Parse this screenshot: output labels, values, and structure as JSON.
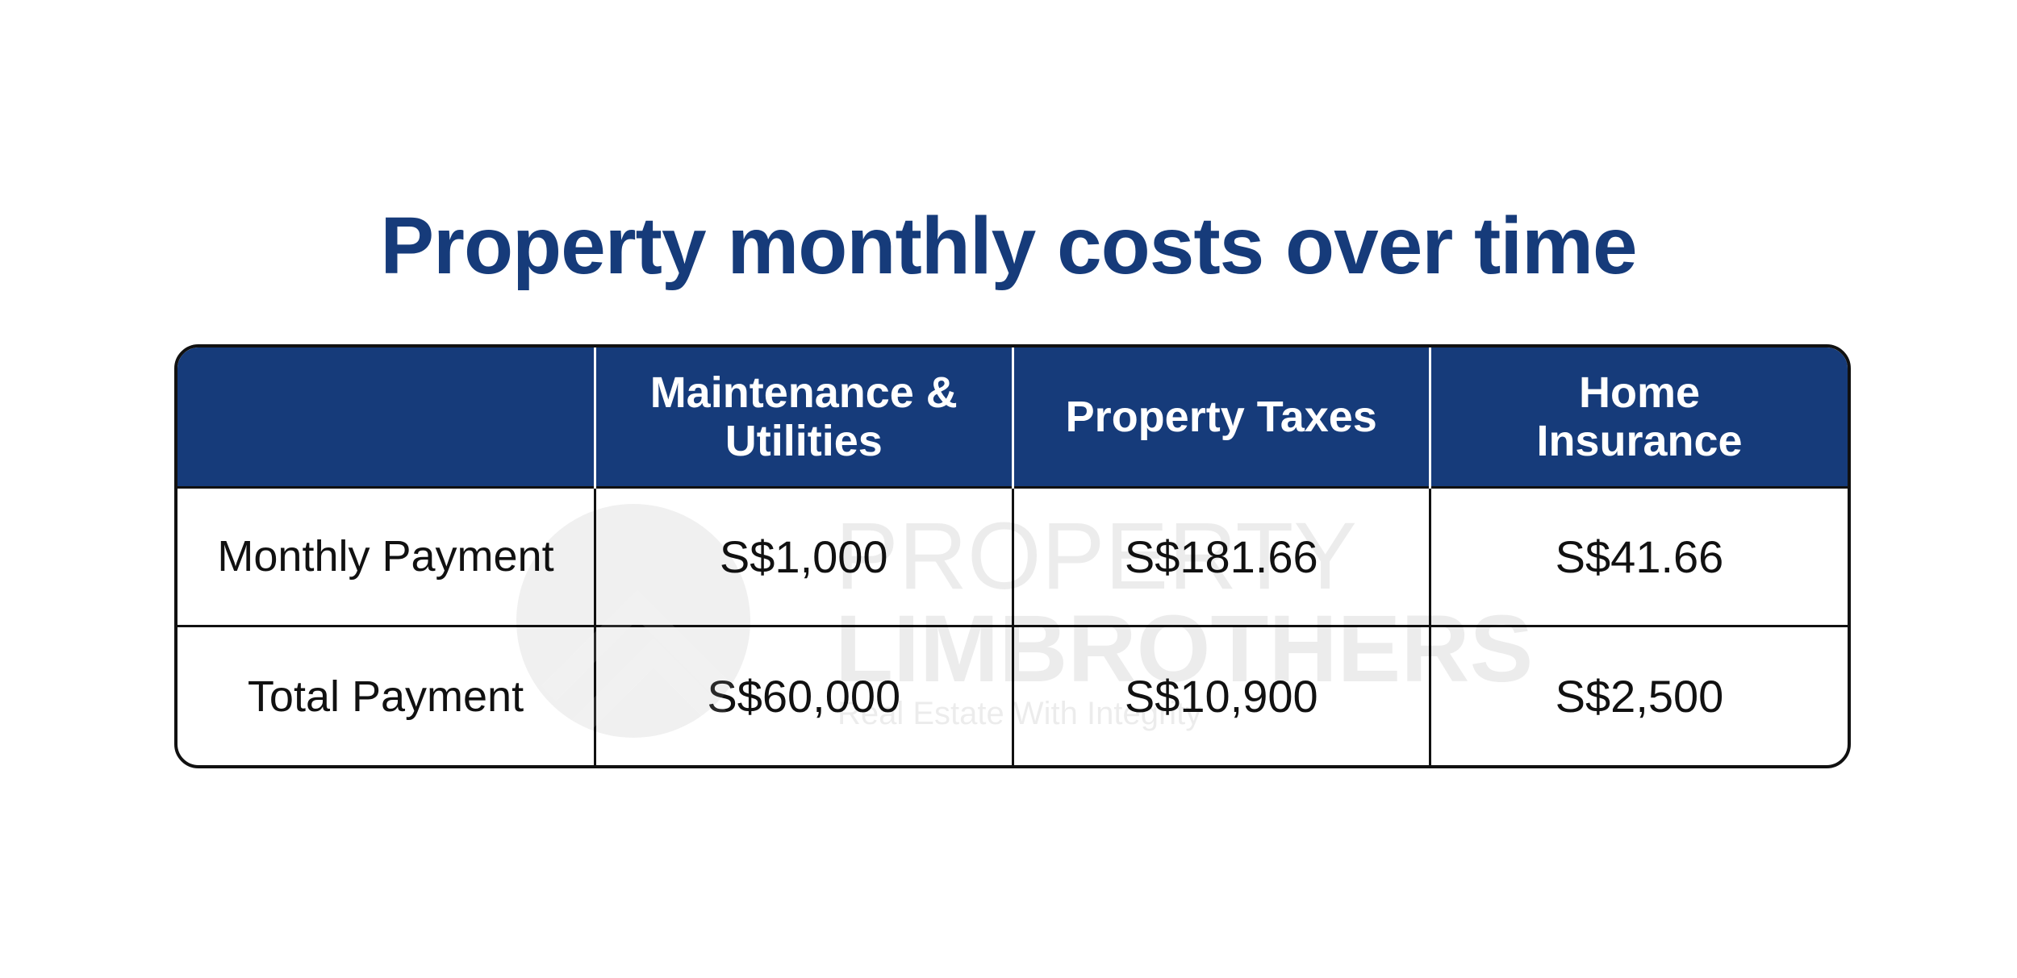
{
  "chart_data": {
    "type": "table",
    "title": "Property monthly costs over time",
    "columns": [
      "",
      "Maintenance & Utilities",
      "Property Taxes",
      "Home Insurance"
    ],
    "rows": [
      {
        "label": "Monthly Payment",
        "values": [
          "S$1,000",
          "S$181.66",
          "S$41.66"
        ]
      },
      {
        "label": "Total Payment",
        "values": [
          "S$60,000",
          "S$10,900",
          "S$2,500"
        ]
      }
    ]
  },
  "watermark": {
    "line1": "PROPERTY",
    "line2": "LIMBROTHERS",
    "tagline": "Real Estate With Integrity"
  },
  "colors": {
    "header_bg": "#163b7a",
    "title": "#163b7a",
    "border": "#111111"
  }
}
